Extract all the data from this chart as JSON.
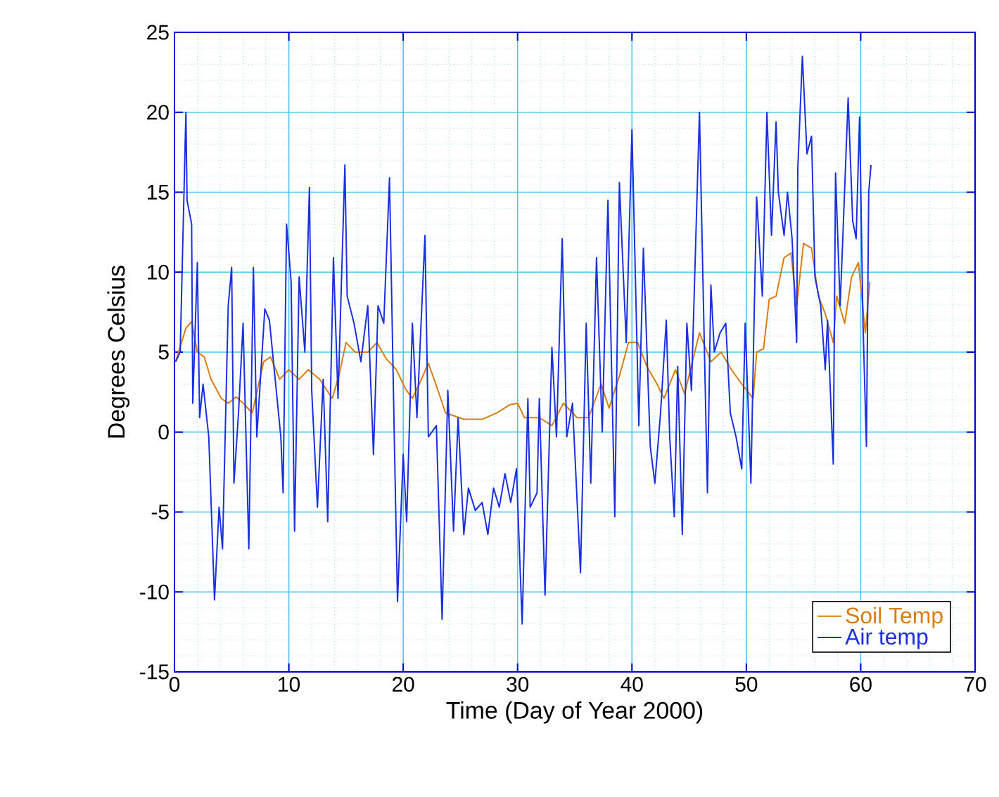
{
  "chart_data": {
    "type": "line",
    "xlabel": "Time (Day of Year 2000)",
    "ylabel": "Degrees Celsius",
    "xlim": [
      0,
      70
    ],
    "ylim": [
      -15,
      25
    ],
    "xticks": [
      0,
      {
        "value": 2,
        "label": null
      },
      {
        "value": 4,
        "label": null
      },
      {
        "value": 6,
        "label": null
      },
      {
        "value": 8,
        "label": null
      },
      10,
      {
        "value": 12,
        "label": null
      },
      {
        "value": 14,
        "label": null
      },
      {
        "value": 16,
        "label": null
      },
      {
        "value": 18,
        "label": null
      },
      20,
      {
        "value": 22,
        "label": null
      },
      {
        "value": 24,
        "label": null
      },
      {
        "value": 26,
        "label": null
      },
      {
        "value": 28,
        "label": null
      },
      30,
      {
        "value": 32,
        "label": null
      },
      {
        "value": 34,
        "label": null
      },
      {
        "value": 36,
        "label": null
      },
      {
        "value": 38,
        "label": null
      },
      40,
      {
        "value": 42,
        "label": null
      },
      {
        "value": 44,
        "label": null
      },
      {
        "value": 46,
        "label": null
      },
      {
        "value": 48,
        "label": null
      },
      50,
      {
        "value": 52,
        "label": null
      },
      {
        "value": 54,
        "label": null
      },
      {
        "value": 56,
        "label": null
      },
      {
        "value": 58,
        "label": null
      },
      60,
      {
        "value": 62,
        "label": null
      },
      {
        "value": 64,
        "label": null
      },
      {
        "value": 66,
        "label": null
      },
      {
        "value": 68,
        "label": null
      },
      70
    ],
    "yticks": [
      -15,
      {
        "value": -14,
        "label": null
      },
      {
        "value": -13,
        "label": null
      },
      {
        "value": -12,
        "label": null
      },
      {
        "value": -11,
        "label": null
      },
      -10,
      {
        "value": -9,
        "label": null
      },
      {
        "value": -8,
        "label": null
      },
      {
        "value": -7,
        "label": null
      },
      {
        "value": -6,
        "label": null
      },
      -5,
      {
        "value": -4,
        "label": null
      },
      {
        "value": -3,
        "label": null
      },
      {
        "value": -2,
        "label": null
      },
      {
        "value": -1,
        "label": null
      },
      0,
      {
        "value": 1,
        "label": null
      },
      {
        "value": 2,
        "label": null
      },
      {
        "value": 3,
        "label": null
      },
      {
        "value": 4,
        "label": null
      },
      5,
      {
        "value": 6,
        "label": null
      },
      {
        "value": 7,
        "label": null
      },
      {
        "value": 8,
        "label": null
      },
      {
        "value": 9,
        "label": null
      },
      10,
      {
        "value": 11,
        "label": null
      },
      {
        "value": 12,
        "label": null
      },
      {
        "value": 13,
        "label": null
      },
      {
        "value": 14,
        "label": null
      },
      15,
      {
        "value": 16,
        "label": null
      },
      {
        "value": 17,
        "label": null
      },
      {
        "value": 18,
        "label": null
      },
      {
        "value": 19,
        "label": null
      },
      20,
      {
        "value": 21,
        "label": null
      },
      {
        "value": 22,
        "label": null
      },
      {
        "value": 23,
        "label": null
      },
      {
        "value": 24,
        "label": null
      },
      25
    ],
    "grid": true,
    "legend": "bottom right",
    "marker": "none",
    "line_style": "solid",
    "series": [
      {
        "name": "Soil Temp",
        "color": "#d97d12",
        "x": [
          0.1,
          1.0,
          1.5,
          2.0,
          2.6,
          3.2,
          4.1,
          4.7,
          5.4,
          6.0,
          6.8,
          7.8,
          8.4,
          9.2,
          10.0,
          10.9,
          11.7,
          12.7,
          13.8,
          14.4,
          15.0,
          15.8,
          16.9,
          17.7,
          18.5,
          19.4,
          20.2,
          20.8,
          21.4,
          22.2,
          22.9,
          23.7,
          24.1,
          25.3,
          26.9,
          28.2,
          29.3,
          30.0,
          30.6,
          31.9,
          33.0,
          34.0,
          35.2,
          36.2,
          37.3,
          38.0,
          38.9,
          39.7,
          40.5,
          41.3,
          42.2,
          42.8,
          43.8,
          44.6,
          45.9,
          46.9,
          47.8,
          48.7,
          49.6,
          50.6,
          50.9,
          51.5,
          52.0,
          52.6,
          53.3,
          53.9,
          54.4,
          55.0,
          55.7,
          56.3,
          56.9,
          57.6,
          57.9,
          58.6,
          59.2,
          59.8,
          60.4,
          60.8
        ],
        "values": [
          4.4,
          6.5,
          6.9,
          5.0,
          4.7,
          3.3,
          2.1,
          1.8,
          2.2,
          1.8,
          1.2,
          4.4,
          4.7,
          3.3,
          3.9,
          3.3,
          3.9,
          3.3,
          2.1,
          3.6,
          5.6,
          5.0,
          5.0,
          5.6,
          4.6,
          3.9,
          2.7,
          2.1,
          3.0,
          4.3,
          2.9,
          1.2,
          1.1,
          0.8,
          0.8,
          1.2,
          1.7,
          1.8,
          0.9,
          0.9,
          0.4,
          1.8,
          0.9,
          0.9,
          3.0,
          1.5,
          3.5,
          5.6,
          5.6,
          4.1,
          3.0,
          2.1,
          3.9,
          2.4,
          6.2,
          4.4,
          5.0,
          3.9,
          3.0,
          2.1,
          5.0,
          5.2,
          8.3,
          8.5,
          10.9,
          11.2,
          7.9,
          11.8,
          11.5,
          8.5,
          7.4,
          5.6,
          8.5,
          6.8,
          9.7,
          10.6,
          6.2,
          9.4
        ]
      },
      {
        "name": "Air temp",
        "color": "#1a2fe0",
        "x": [
          0.1,
          0.5,
          1.0,
          1.1,
          1.5,
          1.6,
          2.0,
          2.2,
          2.5,
          3.0,
          3.5,
          3.9,
          4.2,
          4.7,
          5.0,
          5.2,
          5.6,
          6.0,
          6.5,
          6.9,
          7.2,
          7.9,
          8.3,
          9.3,
          9.5,
          9.8,
          10.2,
          10.5,
          10.9,
          11.4,
          11.8,
          12.0,
          12.5,
          13.0,
          13.4,
          13.9,
          14.3,
          14.9,
          15.1,
          15.7,
          16.3,
          16.9,
          17.4,
          17.8,
          18.3,
          18.8,
          19.2,
          19.5,
          20.0,
          20.3,
          20.8,
          21.2,
          21.9,
          22.2,
          22.9,
          23.4,
          23.9,
          24.4,
          24.8,
          25.3,
          25.7,
          26.3,
          26.9,
          27.4,
          27.9,
          28.4,
          28.9,
          29.4,
          29.9,
          30.4,
          30.9,
          31.1,
          31.7,
          31.9,
          32.4,
          33.0,
          33.4,
          33.9,
          34.3,
          34.8,
          35.5,
          36.0,
          36.4,
          36.9,
          37.4,
          37.9,
          38.5,
          38.9,
          39.5,
          40.0,
          40.3,
          40.6,
          41.0,
          41.6,
          42.0,
          42.5,
          43.0,
          43.3,
          43.7,
          44.0,
          44.4,
          44.8,
          45.2,
          45.9,
          46.2,
          46.6,
          46.9,
          47.2,
          47.7,
          48.2,
          48.6,
          49.1,
          49.6,
          49.9,
          50.4,
          50.7,
          50.9,
          51.4,
          51.8,
          52.2,
          52.6,
          52.8,
          53.3,
          53.6,
          54.0,
          54.4,
          54.5,
          54.9,
          55.3,
          55.7,
          56.0,
          56.5,
          56.9,
          57.1,
          57.6,
          57.8,
          58.2,
          58.4,
          58.9,
          59.3,
          59.6,
          59.9,
          60.2,
          60.5,
          60.7,
          60.9
        ],
        "values": [
          4.4,
          5.0,
          20.0,
          14.5,
          13.0,
          1.8,
          10.6,
          0.9,
          3.0,
          -0.3,
          -10.5,
          -4.7,
          -7.3,
          7.9,
          10.3,
          -3.2,
          1.2,
          6.8,
          -7.3,
          10.3,
          -0.3,
          7.7,
          7.0,
          -0.3,
          -3.8,
          13.0,
          9.4,
          -6.2,
          9.7,
          5.0,
          15.3,
          2.6,
          -4.7,
          3.3,
          -5.6,
          10.9,
          2.1,
          16.7,
          8.5,
          6.8,
          4.4,
          7.9,
          -1.4,
          7.9,
          6.8,
          15.9,
          0.4,
          -10.6,
          -1.4,
          -5.6,
          6.8,
          0.9,
          12.3,
          -0.3,
          0.4,
          -11.7,
          2.6,
          -6.2,
          0.9,
          -6.4,
          -3.5,
          -4.9,
          -4.4,
          -6.4,
          -3.5,
          -4.7,
          -2.6,
          -4.4,
          -2.3,
          -12.0,
          2.1,
          -4.7,
          -3.8,
          2.1,
          -10.2,
          5.3,
          -0.3,
          12.1,
          -0.3,
          1.8,
          -8.8,
          6.8,
          -3.2,
          10.9,
          0.0,
          14.5,
          -5.3,
          15.6,
          5.6,
          18.9,
          9.7,
          0.4,
          11.5,
          -0.9,
          -3.2,
          1.2,
          7.0,
          -0.3,
          -5.3,
          4.1,
          -6.4,
          6.8,
          2.6,
          20.0,
          9.7,
          -3.8,
          9.2,
          5.0,
          6.2,
          6.8,
          1.2,
          -0.3,
          -2.3,
          6.8,
          -3.2,
          7.9,
          14.7,
          8.5,
          20.0,
          12.3,
          19.4,
          15.0,
          12.3,
          15.0,
          12.1,
          5.6,
          16.5,
          23.5,
          17.4,
          18.5,
          9.7,
          7.9,
          3.9,
          7.0,
          -2.0,
          16.2,
          7.9,
          11.5,
          20.9,
          13.2,
          12.1,
          19.7,
          6.8,
          -0.9,
          15.0,
          16.7
        ]
      }
    ]
  }
}
